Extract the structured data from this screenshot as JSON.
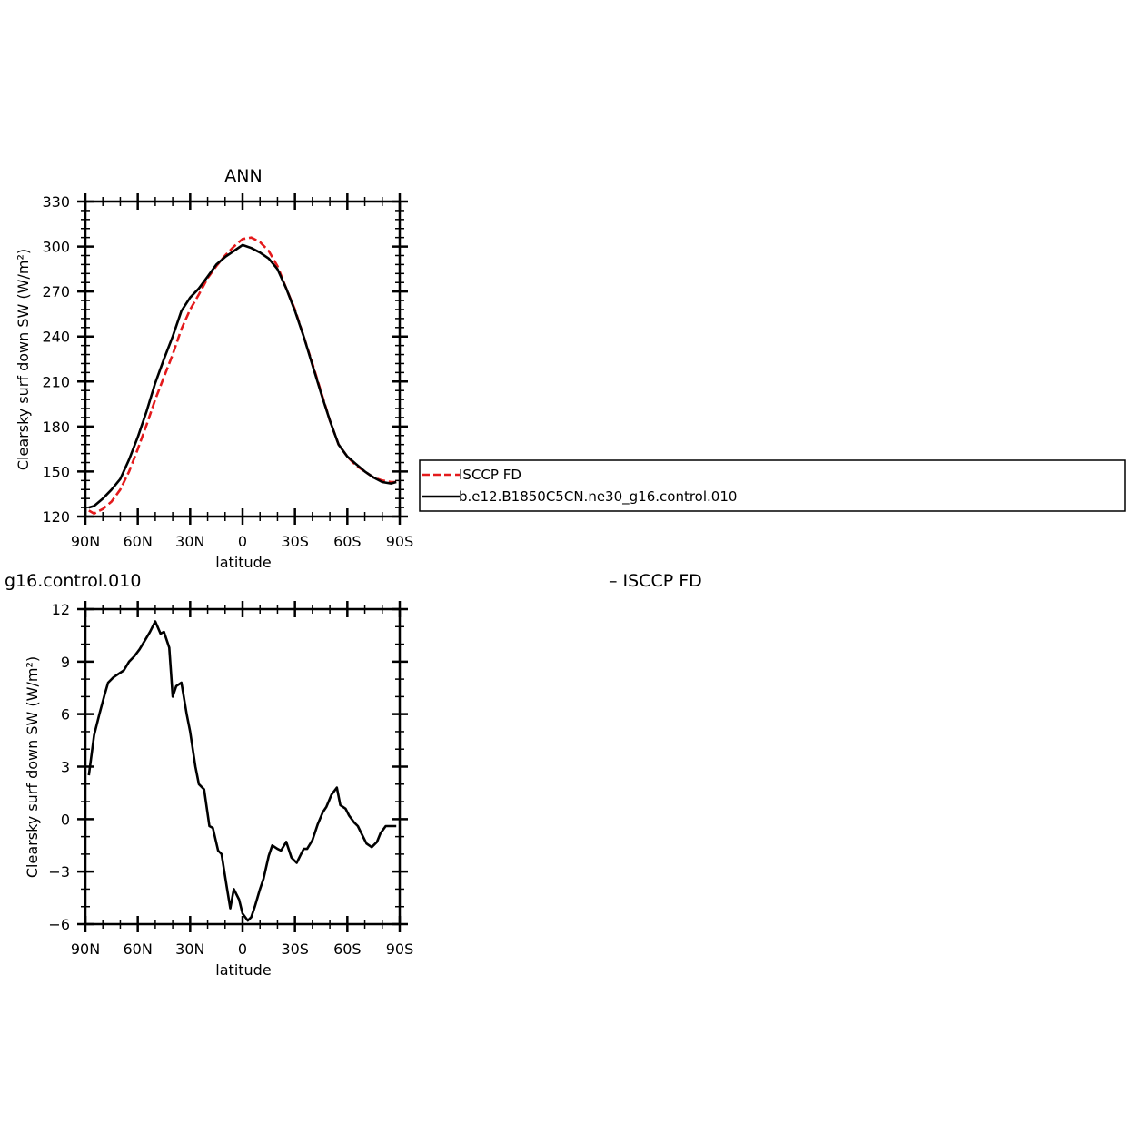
{
  "chart_data": [
    {
      "type": "line",
      "title": "ANN",
      "xlabel": "latitude",
      "ylabel": "Clearsky surf down SW (W/m²)",
      "xlim": [
        90,
        -90
      ],
      "ylim": [
        120,
        330
      ],
      "x_ticks": [
        90,
        60,
        30,
        0,
        -30,
        -60,
        -90
      ],
      "x_tick_labels": [
        "90N",
        "60N",
        "30N",
        "0",
        "30S",
        "60S",
        "90S"
      ],
      "y_ticks": [
        120,
        150,
        180,
        210,
        240,
        270,
        300,
        330
      ],
      "y_tick_labels": [
        "120",
        "150",
        "180",
        "210",
        "240",
        "270",
        "300",
        "330"
      ],
      "legend": "right-outside-box",
      "grid": false,
      "series": [
        {
          "name": "ISCCP FD",
          "color": "#e41a1c",
          "dash": "dashed",
          "x": [
            88,
            85,
            80,
            75,
            70,
            65,
            60,
            55,
            50,
            45,
            40,
            35,
            30,
            25,
            20,
            15,
            10,
            5,
            0,
            -5,
            -10,
            -15,
            -20,
            -25,
            -30,
            -35,
            -40,
            -45,
            -50,
            -55,
            -60,
            -65,
            -70,
            -75,
            -80,
            -85,
            -88
          ],
          "values": [
            124,
            122,
            125,
            130,
            138,
            150,
            165,
            181,
            198,
            213,
            228,
            245,
            258,
            268,
            279,
            287,
            294,
            300,
            305,
            306,
            303,
            297,
            287,
            272,
            258,
            240,
            222,
            203,
            184,
            168,
            160,
            154,
            150,
            146,
            144,
            143,
            143
          ]
        },
        {
          "name": "b.e12.B1850C5CN.ne30_g16.control.010",
          "color": "#000000",
          "dash": "solid",
          "x": [
            88,
            85,
            80,
            75,
            70,
            65,
            60,
            55,
            50,
            45,
            40,
            35,
            30,
            25,
            20,
            15,
            10,
            5,
            0,
            -5,
            -10,
            -15,
            -20,
            -25,
            -30,
            -35,
            -40,
            -45,
            -50,
            -55,
            -60,
            -65,
            -70,
            -75,
            -80,
            -85,
            -88
          ],
          "values": [
            126,
            127,
            132,
            138,
            145,
            158,
            173,
            190,
            209,
            225,
            240,
            257,
            266,
            272,
            280,
            288,
            293,
            297,
            301,
            299,
            296,
            292,
            285,
            272,
            257,
            240,
            221,
            202,
            184,
            168,
            160,
            155,
            150,
            146,
            143,
            142,
            143
          ]
        }
      ]
    },
    {
      "type": "line",
      "title": "g16.control.010",
      "title_right": "– ISCCP FD",
      "xlabel": "latitude",
      "ylabel": "Clearsky surf down SW (W/m²)",
      "xlim": [
        90,
        -90
      ],
      "ylim": [
        -6,
        12
      ],
      "x_ticks": [
        90,
        60,
        30,
        0,
        -30,
        -60,
        -90
      ],
      "x_tick_labels": [
        "90N",
        "60N",
        "30N",
        "0",
        "30S",
        "60S",
        "90S"
      ],
      "y_ticks": [
        -6,
        -3,
        0,
        3,
        6,
        9,
        12
      ],
      "y_tick_labels": [
        "−6",
        "−3",
        "0",
        "3",
        "6",
        "9",
        "12"
      ],
      "grid": false,
      "series": [
        {
          "color": "#000000",
          "x": [
            88,
            85,
            82,
            79,
            77,
            74,
            71,
            68,
            65,
            62,
            59,
            56,
            53,
            50,
            47,
            45,
            42,
            40,
            38,
            35,
            32,
            30,
            27,
            25,
            22,
            19,
            17,
            14,
            12,
            9,
            7,
            5,
            2,
            0,
            -3,
            -5,
            -7,
            -10,
            -12,
            -15,
            -17,
            -20,
            -22,
            -25,
            -28,
            -31,
            -33,
            -35,
            -37,
            -40,
            -43,
            -46,
            -48,
            -51,
            -54,
            -56,
            -59,
            -61,
            -64,
            -66,
            -68,
            -71,
            -74,
            -77,
            -79,
            -82,
            -85,
            -88
          ],
          "values": [
            2.5,
            4.8,
            6.0,
            7.1,
            7.8,
            8.1,
            8.3,
            8.5,
            9.0,
            9.3,
            9.7,
            10.2,
            10.7,
            11.3,
            10.6,
            10.7,
            9.8,
            7.0,
            7.6,
            7.8,
            6.0,
            5.0,
            3.0,
            2.0,
            1.7,
            -0.4,
            -0.5,
            -1.8,
            -2.0,
            -3.9,
            -5.1,
            -4.0,
            -4.6,
            -5.4,
            -5.8,
            -5.6,
            -5.0,
            -4.0,
            -3.4,
            -2.1,
            -1.5,
            -1.7,
            -1.8,
            -1.3,
            -2.2,
            -2.5,
            -2.1,
            -1.7,
            -1.7,
            -1.2,
            -0.3,
            0.4,
            0.7,
            1.4,
            1.8,
            0.8,
            0.6,
            0.2,
            -0.2,
            -0.4,
            -0.8,
            -1.4,
            -1.6,
            -1.3,
            -0.8,
            -0.4,
            -0.4,
            -0.4
          ]
        }
      ]
    }
  ]
}
